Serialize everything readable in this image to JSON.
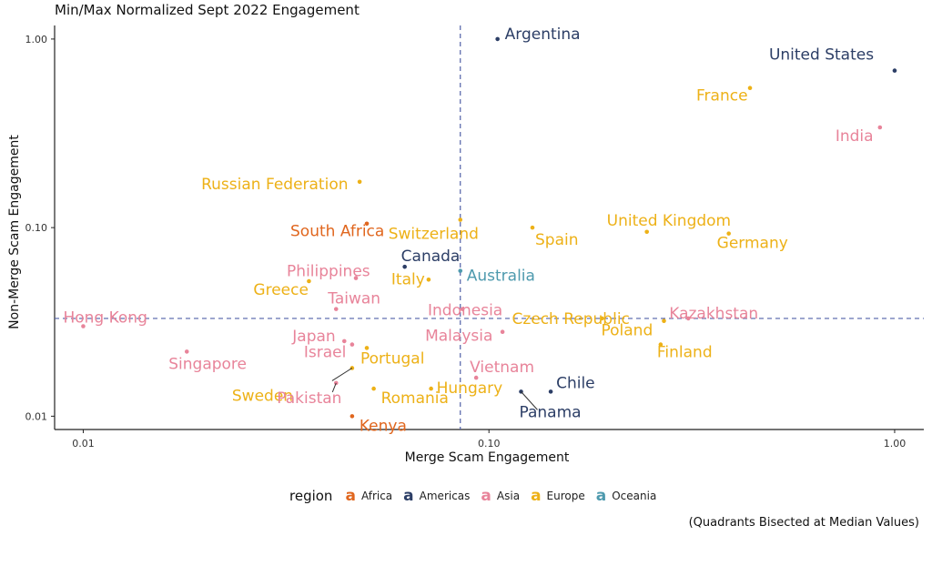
{
  "title": "Min/Max Normalized Sept 2022 Engagement",
  "caption": "(Quadrants Bisected at Median Values)",
  "legend": {
    "title": "region",
    "key_glyph": "a",
    "items": [
      {
        "label": "Africa",
        "color": "#E0661E"
      },
      {
        "label": "Americas",
        "color": "#2C3E66"
      },
      {
        "label": "Asia",
        "color": "#E8849A"
      },
      {
        "label": "Europe",
        "color": "#EDB117"
      },
      {
        "label": "Oceania",
        "color": "#4E9AAE"
      }
    ]
  },
  "chart_data": {
    "type": "scatter",
    "xlabel": "Merge Scam Engagement",
    "ylabel": "Non-Merge Scam Engagement",
    "x_scale": "log10",
    "y_scale": "log10",
    "xlim": [
      0.0085,
      1.18
    ],
    "ylim": [
      0.0085,
      1.18
    ],
    "x_ticks": [
      {
        "value": 0.01,
        "label": "0.01"
      },
      {
        "value": 0.1,
        "label": "0.10"
      },
      {
        "value": 1,
        "label": "1.00"
      }
    ],
    "y_ticks": [
      {
        "value": 0.01,
        "label": "0.01"
      },
      {
        "value": 0.1,
        "label": "0.10"
      },
      {
        "value": 1,
        "label": "1.00"
      }
    ],
    "grid": false,
    "legend_position": "bottom",
    "reference_lines": {
      "x_median": 0.085,
      "y_median": 0.033
    },
    "points": [
      {
        "label": "Argentina",
        "region": "Americas",
        "x": 0.105,
        "y": 1.0
      },
      {
        "label": "United States",
        "region": "Americas",
        "x": 1.0,
        "y": 0.68
      },
      {
        "label": "France",
        "region": "Europe",
        "x": 0.44,
        "y": 0.55
      },
      {
        "label": "India",
        "region": "Asia",
        "x": 0.92,
        "y": 0.34
      },
      {
        "label": "Russian Federation",
        "region": "Europe",
        "x": 0.048,
        "y": 0.175
      },
      {
        "label": "Switzerland",
        "region": "Europe",
        "x": 0.085,
        "y": 0.11
      },
      {
        "label": "South Africa",
        "region": "Africa",
        "x": 0.05,
        "y": 0.105
      },
      {
        "label": "Spain",
        "region": "Europe",
        "x": 0.128,
        "y": 0.1
      },
      {
        "label": "United Kingdom",
        "region": "Europe",
        "x": 0.245,
        "y": 0.095
      },
      {
        "label": "Germany",
        "region": "Europe",
        "x": 0.39,
        "y": 0.093
      },
      {
        "label": "Canada",
        "region": "Americas",
        "x": 0.062,
        "y": 0.062
      },
      {
        "label": "Australia",
        "region": "Oceania",
        "x": 0.085,
        "y": 0.059
      },
      {
        "label": "Philippines",
        "region": "Asia",
        "x": 0.047,
        "y": 0.054
      },
      {
        "label": "Italy",
        "region": "Europe",
        "x": 0.071,
        "y": 0.053
      },
      {
        "label": "Greece",
        "region": "Europe",
        "x": 0.036,
        "y": 0.052
      },
      {
        "label": "Taiwan",
        "region": "Asia",
        "x": 0.042,
        "y": 0.037
      },
      {
        "label": "Indonesia",
        "region": "Asia",
        "x": 0.086,
        "y": 0.037
      },
      {
        "label": "Czech Republic",
        "region": "Europe",
        "x": 0.19,
        "y": 0.033
      },
      {
        "label": "Kazakhstan",
        "region": "Asia",
        "x": 0.31,
        "y": 0.033
      },
      {
        "label": "Hong Kong",
        "region": "Asia",
        "x": 0.01,
        "y": 0.03
      },
      {
        "label": "Japan",
        "region": "Asia",
        "x": 0.044,
        "y": 0.025
      },
      {
        "label": "Malaysia",
        "region": "Asia",
        "x": 0.108,
        "y": 0.028
      },
      {
        "label": "Poland",
        "region": "Europe",
        "x": 0.27,
        "y": 0.032
      },
      {
        "label": "Finland",
        "region": "Europe",
        "x": 0.265,
        "y": 0.024
      },
      {
        "label": "Israel",
        "region": "Asia",
        "x": 0.046,
        "y": 0.024
      },
      {
        "label": "Portugal",
        "region": "Europe",
        "x": 0.05,
        "y": 0.023
      },
      {
        "label": "Singapore",
        "region": "Asia",
        "x": 0.018,
        "y": 0.022
      },
      {
        "label": "Sweden",
        "region": "Europe",
        "x": 0.046,
        "y": 0.018
      },
      {
        "label": "Vietnam",
        "region": "Asia",
        "x": 0.093,
        "y": 0.016
      },
      {
        "label": "Pakistan",
        "region": "Asia",
        "x": 0.042,
        "y": 0.015
      },
      {
        "label": "Romania",
        "region": "Europe",
        "x": 0.052,
        "y": 0.014
      },
      {
        "label": "Hungary",
        "region": "Europe",
        "x": 0.072,
        "y": 0.014
      },
      {
        "label": "Chile",
        "region": "Americas",
        "x": 0.142,
        "y": 0.0135
      },
      {
        "label": "Panama",
        "region": "Americas",
        "x": 0.12,
        "y": 0.0135
      },
      {
        "label": "Kenya",
        "region": "Africa",
        "x": 0.046,
        "y": 0.01
      }
    ]
  }
}
